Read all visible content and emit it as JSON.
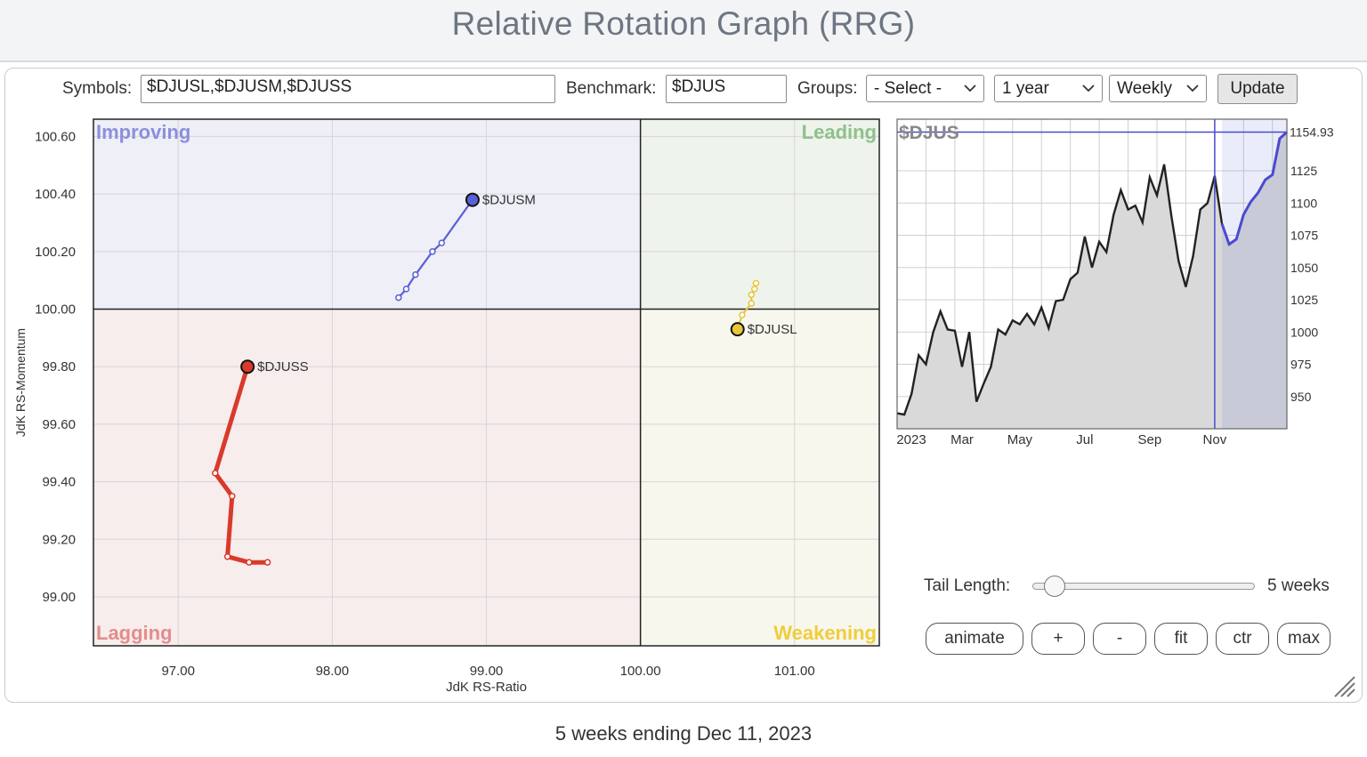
{
  "page": {
    "title": "Relative Rotation Graph (RRG)",
    "footer": "5 weeks ending Dec 11, 2023"
  },
  "controls": {
    "symbols_label": "Symbols:",
    "symbols_value": "$DJUSL,$DJUSM,$DJUSS",
    "benchmark_label": "Benchmark:",
    "benchmark_value": "$DJUS",
    "groups_label": "Groups:",
    "groups_value": "- Select -",
    "period_value": "1 year",
    "frequency_value": "Weekly",
    "update_label": "Update",
    "tail_length_label": "Tail Length:",
    "tail_length_value": "5 weeks",
    "tail_length_fraction": 0.1,
    "buttons": {
      "animate": "animate",
      "zoom_in": "+",
      "zoom_out": "-",
      "fit": "fit",
      "center": "ctr",
      "max": "max"
    }
  },
  "colors": {
    "improving": "#eeeff7",
    "leading": "#eef3ec",
    "weakening": "#f7f7ee",
    "lagging": "#f7eded",
    "improving_label": "#8b8fde",
    "leading_label": "#8fc18c",
    "weakening_label": "#f0cd3a",
    "lagging_label": "#e58c8c",
    "DJUSM": "#5a5fd8",
    "DJUSL": "#e8c53a",
    "DJUSS": "#d93a2a",
    "benchmark_line": "#222222",
    "cursor": "#4a4ad0"
  },
  "chart_data": [
    {
      "type": "scatter",
      "subtype": "relative-rotation-graph",
      "xlabel": "JdK RS-Ratio",
      "ylabel": "JdK RS-Momentum",
      "xlim": [
        96.45,
        101.55
      ],
      "ylim": [
        98.83,
        100.66
      ],
      "xticks": [
        "97.00",
        "98.00",
        "99.00",
        "100.00",
        "101.00"
      ],
      "xtick_values": [
        97,
        98,
        99,
        100,
        101
      ],
      "yticks": [
        "100.60",
        "100.40",
        "100.20",
        "100.00",
        "99.80",
        "99.60",
        "99.40",
        "99.20",
        "99.00"
      ],
      "ytick_values": [
        100.6,
        100.4,
        100.2,
        100.0,
        99.8,
        99.6,
        99.4,
        99.2,
        99.0
      ],
      "quadrants": {
        "improving": "Improving",
        "leading": "Leading",
        "weakening": "Weakening",
        "lagging": "Lagging"
      },
      "series": [
        {
          "name": "$DJUSM",
          "color": "#5a5fd8",
          "x": [
            98.43,
            98.48,
            98.54,
            98.65,
            98.71,
            98.91
          ],
          "y": [
            100.04,
            100.07,
            100.12,
            100.2,
            100.23,
            100.38
          ]
        },
        {
          "name": "$DJUSL",
          "color": "#e8c53a",
          "x": [
            100.75,
            100.74,
            100.72,
            100.72,
            100.66,
            100.63
          ],
          "y": [
            100.09,
            100.07,
            100.05,
            100.02,
            99.98,
            99.93
          ]
        },
        {
          "name": "$DJUSS",
          "color": "#d93a2a",
          "x": [
            97.58,
            97.46,
            97.32,
            97.35,
            97.24,
            97.45
          ],
          "y": [
            99.12,
            99.12,
            99.14,
            99.35,
            99.43,
            99.8
          ]
        }
      ]
    },
    {
      "type": "area",
      "title": "$DJUS",
      "last_value_label": "1154.93",
      "x_labels": [
        "2023",
        "Mar",
        "May",
        "Jul",
        "Sep",
        "Nov"
      ],
      "x_label_weeks": [
        0,
        9,
        17,
        26,
        35,
        44
      ],
      "ylim": [
        925,
        1165
      ],
      "yticks": [
        "1125",
        "1100",
        "1075",
        "1050",
        "1025",
        "1000",
        "975",
        "950"
      ],
      "ytick_values": [
        1125,
        1100,
        1075,
        1050,
        1025,
        1000,
        975,
        950
      ],
      "tail_start_week": 45,
      "values": [
        937,
        936,
        952,
        982,
        975,
        1000,
        1016,
        1002,
        1001,
        973,
        1000,
        946,
        960,
        973,
        1002,
        998,
        1009,
        1006,
        1014,
        1006,
        1019,
        1003,
        1024,
        1025,
        1041,
        1046,
        1074,
        1050,
        1070,
        1062,
        1091,
        1110,
        1095,
        1098,
        1085,
        1120,
        1106,
        1130,
        1090,
        1055,
        1035,
        1059,
        1095,
        1100,
        1121,
        1084,
        1068,
        1072,
        1091,
        1101,
        1108,
        1118,
        1122,
        1150,
        1155
      ]
    }
  ]
}
